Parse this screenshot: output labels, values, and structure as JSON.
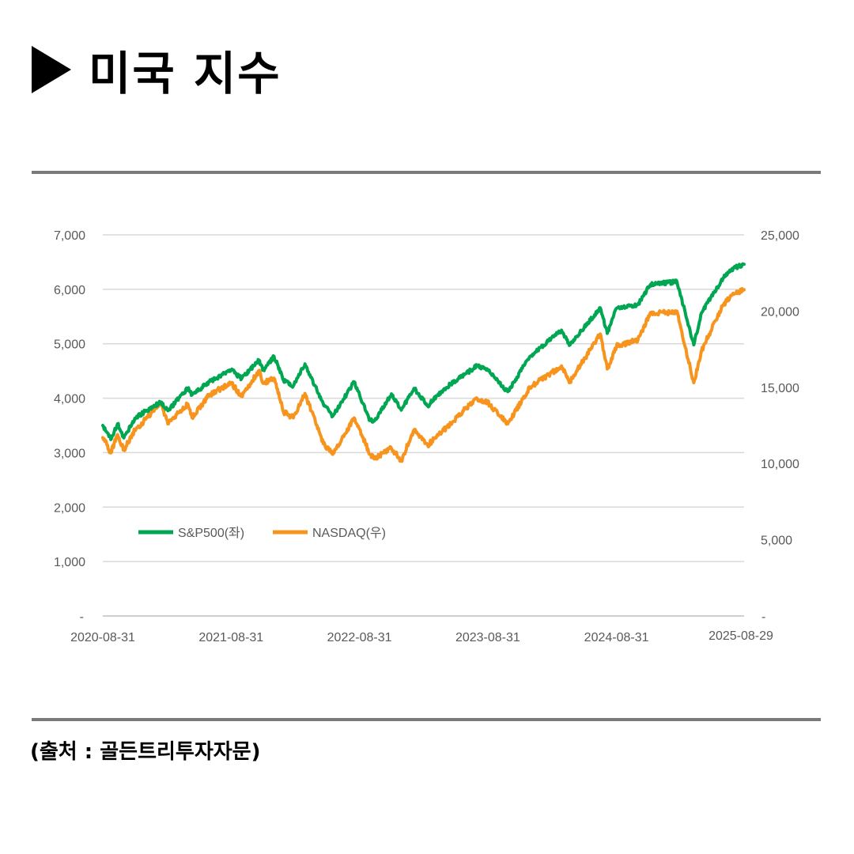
{
  "header": {
    "title": "미국 지수",
    "icon": "play-triangle-icon"
  },
  "source": "(출처 : 골든트리투자자문)",
  "chart_data": {
    "type": "line",
    "title": "",
    "y_left": {
      "ticks": [
        "-",
        "1,000",
        "2,000",
        "3,000",
        "4,000",
        "5,000",
        "6,000",
        "7,000"
      ],
      "range": [
        0,
        7000
      ]
    },
    "y_right": {
      "ticks": [
        "-",
        "5,000",
        "10,000",
        "15,000",
        "20,000",
        "25,000"
      ],
      "range": [
        0,
        25000
      ]
    },
    "x_ticks": [
      "2020-08-31",
      "2021-08-31",
      "2022-08-31",
      "2023-08-31",
      "2024-08-31",
      "2025-08-29"
    ],
    "x_range": [
      "2020-08-31",
      "2025-08-29"
    ],
    "grid": true,
    "legend": "bottom-left",
    "series": [
      {
        "name": "S&P500(좌)",
        "axis": "left",
        "color": "#00a651",
        "dates": [
          "2020-08-31",
          "2020-09-23",
          "2020-10-12",
          "2020-10-30",
          "2020-11-30",
          "2020-12-31",
          "2021-02-12",
          "2021-03-04",
          "2021-04-30",
          "2021-05-12",
          "2021-06-30",
          "2021-08-31",
          "2021-09-30",
          "2021-11-18",
          "2021-12-01",
          "2021-12-31",
          "2022-01-27",
          "2022-02-24",
          "2022-03-29",
          "2022-05-20",
          "2022-06-16",
          "2022-08-16",
          "2022-09-30",
          "2022-10-12",
          "2022-11-30",
          "2022-12-28",
          "2023-02-02",
          "2023-03-13",
          "2023-04-28",
          "2023-07-31",
          "2023-08-31",
          "2023-10-27",
          "2023-12-29",
          "2024-03-28",
          "2024-04-19",
          "2024-07-16",
          "2024-08-05",
          "2024-08-31",
          "2024-10-31",
          "2024-12-06",
          "2025-01-23",
          "2025-02-19",
          "2025-04-08",
          "2025-04-30",
          "2025-06-30",
          "2025-07-31",
          "2025-08-29"
        ],
        "values": [
          3500,
          3240,
          3530,
          3270,
          3630,
          3760,
          3930,
          3770,
          4180,
          4060,
          4300,
          4520,
          4360,
          4700,
          4520,
          4770,
          4330,
          4230,
          4630,
          3900,
          3670,
          4300,
          3590,
          3580,
          4080,
          3780,
          4180,
          3860,
          4170,
          4590,
          4510,
          4120,
          4770,
          5250,
          4970,
          5660,
          5190,
          5650,
          5720,
          6090,
          6120,
          6140,
          4980,
          5570,
          6200,
          6390,
          6460
        ]
      },
      {
        "name": "NASDAQ(우)",
        "axis": "right",
        "color": "#f7941d",
        "dates": [
          "2020-08-31",
          "2020-09-23",
          "2020-10-12",
          "2020-10-30",
          "2020-11-30",
          "2020-12-31",
          "2021-02-12",
          "2021-03-04",
          "2021-04-30",
          "2021-05-12",
          "2021-06-30",
          "2021-08-31",
          "2021-09-30",
          "2021-11-18",
          "2021-12-01",
          "2021-12-31",
          "2022-01-27",
          "2022-02-24",
          "2022-03-29",
          "2022-05-20",
          "2022-06-16",
          "2022-08-16",
          "2022-09-30",
          "2022-10-12",
          "2022-11-30",
          "2022-12-28",
          "2023-02-02",
          "2023-03-13",
          "2023-04-28",
          "2023-07-31",
          "2023-08-31",
          "2023-10-27",
          "2023-12-29",
          "2024-03-28",
          "2024-04-19",
          "2024-07-16",
          "2024-08-05",
          "2024-08-31",
          "2024-10-31",
          "2024-12-06",
          "2025-01-23",
          "2025-02-19",
          "2025-04-08",
          "2025-04-30",
          "2025-06-30",
          "2025-07-31",
          "2025-08-29"
        ],
        "values": [
          11700,
          10700,
          11900,
          10900,
          12200,
          12900,
          14000,
          12600,
          13900,
          13000,
          14500,
          15300,
          14400,
          16100,
          15300,
          15600,
          13400,
          13000,
          14600,
          11300,
          10600,
          13000,
          10600,
          10300,
          11000,
          10200,
          12200,
          11200,
          12200,
          14300,
          14000,
          12600,
          15000,
          16400,
          15300,
          18500,
          16200,
          17700,
          18100,
          19900,
          19900,
          20000,
          15300,
          17400,
          20400,
          21100,
          21400
        ]
      }
    ]
  }
}
